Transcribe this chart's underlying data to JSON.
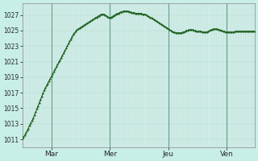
{
  "background_color": "#c8eee8",
  "plot_bg_color": "#d8f0ec",
  "line_color": "#1a5e1a",
  "grid_color": "#b0d8d0",
  "vline_color": "#6a9a8a",
  "ylabel_color": "#2a2a2a",
  "xlabel_color": "#2a2a2a",
  "ylim": [
    1010,
    1028.5
  ],
  "yticks": [
    1011,
    1013,
    1015,
    1017,
    1019,
    1021,
    1023,
    1025,
    1027
  ],
  "xtick_labels": [
    "Mar",
    "Mer",
    "Jeu",
    "Ven"
  ],
  "xtick_positions": [
    24,
    72,
    120,
    168
  ],
  "vline_positions": [
    24,
    72,
    120,
    168
  ],
  "total_hours": 192,
  "pressure_data": [
    1011.1,
    1011.3,
    1011.5,
    1011.8,
    1012.1,
    1012.4,
    1012.8,
    1013.1,
    1013.4,
    1013.7,
    1014.1,
    1014.5,
    1014.9,
    1015.3,
    1015.7,
    1016.1,
    1016.5,
    1016.9,
    1017.3,
    1017.6,
    1017.9,
    1018.2,
    1018.5,
    1018.8,
    1019.1,
    1019.4,
    1019.7,
    1020.0,
    1020.3,
    1020.6,
    1020.9,
    1021.2,
    1021.5,
    1021.8,
    1022.1,
    1022.4,
    1022.7,
    1023.0,
    1023.3,
    1023.6,
    1023.9,
    1024.2,
    1024.5,
    1024.7,
    1024.9,
    1025.1,
    1025.2,
    1025.3,
    1025.4,
    1025.5,
    1025.6,
    1025.7,
    1025.8,
    1025.9,
    1026.0,
    1026.1,
    1026.2,
    1026.3,
    1026.4,
    1026.5,
    1026.6,
    1026.7,
    1026.8,
    1026.9,
    1027.0,
    1027.1,
    1027.1,
    1027.1,
    1027.0,
    1026.9,
    1026.8,
    1026.7,
    1026.6,
    1026.7,
    1026.8,
    1026.9,
    1027.0,
    1027.1,
    1027.2,
    1027.2,
    1027.3,
    1027.4,
    1027.4,
    1027.5,
    1027.5,
    1027.5,
    1027.5,
    1027.5,
    1027.4,
    1027.4,
    1027.3,
    1027.3,
    1027.3,
    1027.2,
    1027.2,
    1027.2,
    1027.2,
    1027.2,
    1027.2,
    1027.1,
    1027.1,
    1027.1,
    1027.0,
    1026.9,
    1026.8,
    1026.7,
    1026.6,
    1026.5,
    1026.4,
    1026.3,
    1026.2,
    1026.1,
    1026.0,
    1025.9,
    1025.8,
    1025.7,
    1025.6,
    1025.5,
    1025.4,
    1025.3,
    1025.2,
    1025.1,
    1025.0,
    1024.9,
    1024.8,
    1024.8,
    1024.7,
    1024.7,
    1024.7,
    1024.7,
    1024.7,
    1024.7,
    1024.8,
    1024.8,
    1024.9,
    1025.0,
    1025.0,
    1025.1,
    1025.1,
    1025.1,
    1025.1,
    1025.0,
    1025.0,
    1024.9,
    1024.9,
    1024.9,
    1024.9,
    1024.9,
    1024.8,
    1024.8,
    1024.8,
    1024.8,
    1024.8,
    1024.9,
    1025.0,
    1025.1,
    1025.1,
    1025.2,
    1025.2,
    1025.2,
    1025.2,
    1025.1,
    1025.1,
    1025.0,
    1025.0,
    1024.9,
    1024.9,
    1024.8,
    1024.8,
    1024.8,
    1024.8,
    1024.8,
    1024.8,
    1024.8,
    1024.8,
    1024.9,
    1024.9,
    1024.9,
    1024.9,
    1024.9,
    1024.9,
    1024.9,
    1024.9,
    1024.9,
    1024.9,
    1024.9,
    1024.9,
    1024.9,
    1024.9,
    1024.9,
    1024.9,
    1024.9
  ]
}
